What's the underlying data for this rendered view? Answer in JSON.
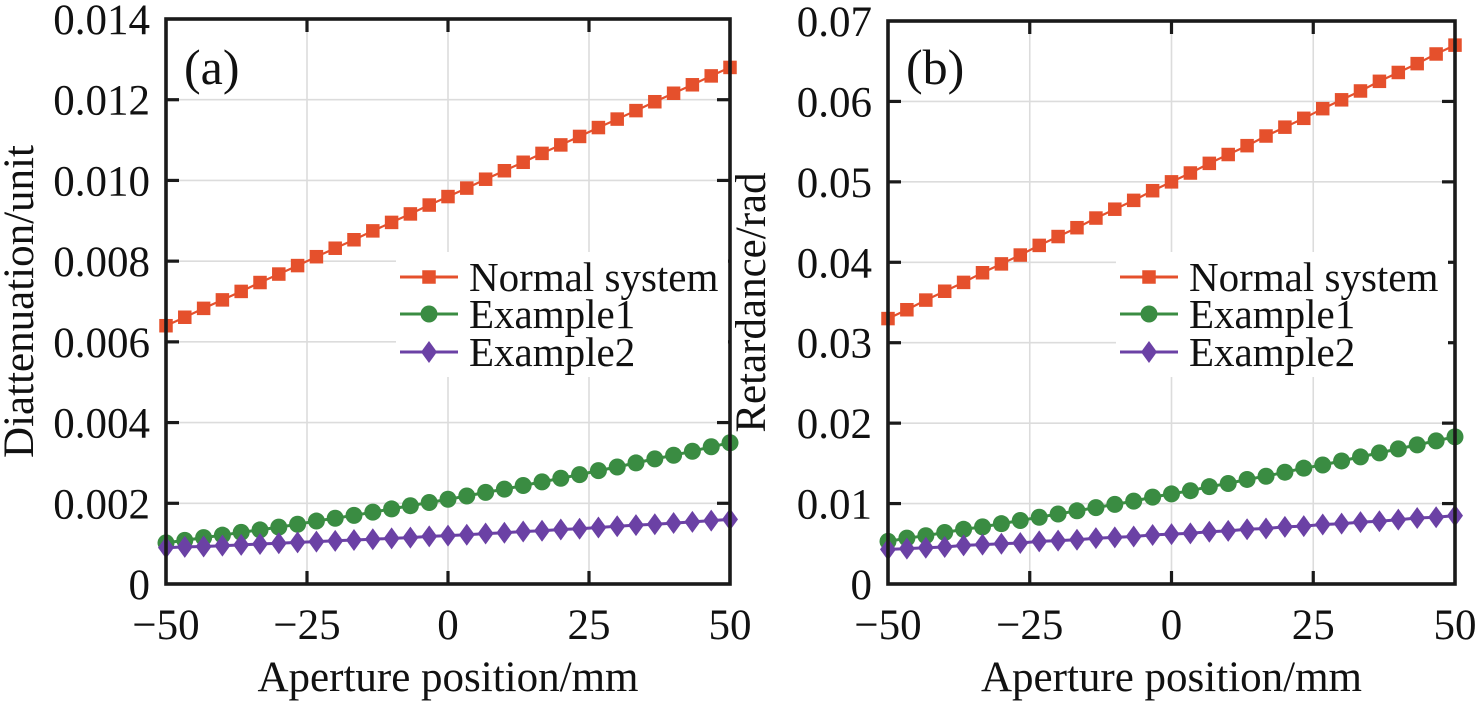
{
  "style": {
    "ink_color": "#1a1a1a",
    "grid_color": "#dcdcdc",
    "background_color": "#ffffff"
  },
  "chart_data": [
    {
      "type": "line",
      "panel_id": "a",
      "panel_label": "(a)",
      "xlabel": "Aperture position/mm",
      "ylabel": "Diattenuation/unit",
      "xlim": [
        -50,
        50
      ],
      "ylim": [
        0,
        0.014
      ],
      "grid": true,
      "legend_position": "middle-right",
      "xticks": [
        -50,
        -25,
        0,
        25,
        50
      ],
      "xtick_labels": [
        "−50",
        "−25",
        "0",
        "25",
        "50"
      ],
      "yticks": [
        0,
        0.002,
        0.004,
        0.006,
        0.008,
        0.01,
        0.012,
        0.014
      ],
      "ytick_labels": [
        "0",
        "0.002",
        "0.004",
        "0.006",
        "0.008",
        "0.010",
        "0.012",
        "0.014"
      ],
      "x": [
        -50,
        -46.67,
        -43.33,
        -40,
        -36.67,
        -33.33,
        -30,
        -26.67,
        -23.33,
        -20,
        -16.67,
        -13.33,
        -10,
        -6.67,
        -3.33,
        0,
        3.33,
        6.67,
        10,
        13.33,
        16.67,
        20,
        23.33,
        26.67,
        30,
        33.33,
        36.67,
        40,
        43.33,
        46.67,
        50
      ],
      "series": [
        {
          "name": "Normal system",
          "marker": "square",
          "color": "#e5502c",
          "values": [
            0.0064,
            0.00661,
            0.00683,
            0.00704,
            0.00725,
            0.00747,
            0.00768,
            0.00789,
            0.00811,
            0.00832,
            0.00853,
            0.00875,
            0.00896,
            0.00917,
            0.00939,
            0.0096,
            0.00981,
            0.01003,
            0.01024,
            0.01045,
            0.01067,
            0.01088,
            0.01109,
            0.01131,
            0.01152,
            0.01173,
            0.01195,
            0.01216,
            0.01237,
            0.01259,
            0.0128
          ]
        },
        {
          "name": "Example1",
          "marker": "circle",
          "color": "#3a8c42",
          "values": [
            0.00102,
            0.00108,
            0.00115,
            0.00121,
            0.00128,
            0.00134,
            0.00141,
            0.00148,
            0.00156,
            0.00163,
            0.0017,
            0.00178,
            0.00186,
            0.00194,
            0.00202,
            0.0021,
            0.00218,
            0.00227,
            0.00235,
            0.00244,
            0.00253,
            0.00262,
            0.00271,
            0.00281,
            0.0029,
            0.003,
            0.0031,
            0.00319,
            0.00329,
            0.0034,
            0.0035
          ]
        },
        {
          "name": "Example2",
          "marker": "diamond",
          "color": "#6b41a5",
          "values": [
            0.0009,
            0.00092,
            0.00093,
            0.00095,
            0.00097,
            0.00099,
            0.00101,
            0.00103,
            0.00105,
            0.00107,
            0.00109,
            0.00111,
            0.00113,
            0.00115,
            0.00118,
            0.0012,
            0.00122,
            0.00125,
            0.00127,
            0.0013,
            0.00132,
            0.00135,
            0.00137,
            0.0014,
            0.00143,
            0.00146,
            0.00148,
            0.00151,
            0.00154,
            0.00157,
            0.0016
          ]
        }
      ]
    },
    {
      "type": "line",
      "panel_id": "b",
      "panel_label": "(b)",
      "xlabel": "Aperture position/mm",
      "ylabel": "Retardance/rad",
      "xlim": [
        -50,
        50
      ],
      "ylim": [
        0,
        0.07
      ],
      "grid": true,
      "legend_position": "middle-right",
      "xticks": [
        -50,
        -25,
        0,
        25,
        50
      ],
      "xtick_labels": [
        "−50",
        "−25",
        "0",
        "25",
        "50"
      ],
      "yticks": [
        0,
        0.01,
        0.02,
        0.03,
        0.04,
        0.05,
        0.06,
        0.07
      ],
      "ytick_labels": [
        "0",
        "0.01",
        "0.02",
        "0.03",
        "0.04",
        "0.05",
        "0.06",
        "0.07"
      ],
      "x": [
        -50,
        -46.67,
        -43.33,
        -40,
        -36.67,
        -33.33,
        -30,
        -26.67,
        -23.33,
        -20,
        -16.67,
        -13.33,
        -10,
        -6.67,
        -3.33,
        0,
        3.33,
        6.67,
        10,
        13.33,
        16.67,
        20,
        23.33,
        26.67,
        30,
        33.33,
        36.67,
        40,
        43.33,
        46.67,
        50
      ],
      "series": [
        {
          "name": "Normal system",
          "marker": "square",
          "color": "#e5502c",
          "values": [
            0.033,
            0.0341,
            0.0353,
            0.0364,
            0.0375,
            0.0387,
            0.0398,
            0.0409,
            0.0421,
            0.0432,
            0.0443,
            0.0455,
            0.0466,
            0.0477,
            0.0489,
            0.05,
            0.0511,
            0.0523,
            0.0534,
            0.0545,
            0.0557,
            0.0568,
            0.0579,
            0.0591,
            0.0602,
            0.0613,
            0.0625,
            0.0636,
            0.0647,
            0.0659,
            0.067
          ]
        },
        {
          "name": "Example1",
          "marker": "circle",
          "color": "#3a8c42",
          "values": [
            0.0053,
            0.0057,
            0.006,
            0.0064,
            0.0068,
            0.0071,
            0.0075,
            0.0079,
            0.0083,
            0.0087,
            0.0091,
            0.0095,
            0.0099,
            0.0103,
            0.0108,
            0.0112,
            0.0116,
            0.0121,
            0.0125,
            0.013,
            0.0134,
            0.0139,
            0.0144,
            0.0148,
            0.0153,
            0.0158,
            0.0163,
            0.0168,
            0.0173,
            0.0178,
            0.0183
          ]
        },
        {
          "name": "Example2",
          "marker": "diamond",
          "color": "#6b41a5",
          "values": [
            0.0043,
            0.0044,
            0.0045,
            0.0046,
            0.0048,
            0.0049,
            0.005,
            0.0051,
            0.0053,
            0.0054,
            0.0055,
            0.0057,
            0.0058,
            0.0059,
            0.0061,
            0.0062,
            0.0063,
            0.0065,
            0.0066,
            0.0068,
            0.0069,
            0.0071,
            0.0072,
            0.0074,
            0.0075,
            0.0077,
            0.0078,
            0.008,
            0.0082,
            0.0083,
            0.0085
          ]
        }
      ]
    }
  ]
}
